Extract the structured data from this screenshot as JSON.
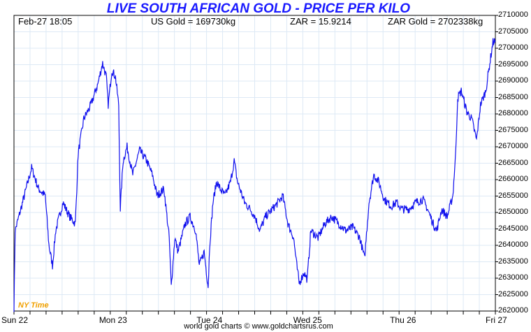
{
  "chart_data": {
    "type": "line",
    "title": "LIVE SOUTH AFRICAN GOLD - PRICE PER KILO",
    "header": {
      "datetime": "Feb-27  18:05",
      "us_gold": "US Gold = 169730kg",
      "zar": "ZAR = 15.9214",
      "zar_gold": "ZAR Gold = 2702338kg"
    },
    "x_unit": "hours since Sun 22 open",
    "xlim": [
      0,
      120
    ],
    "x_ticks": [
      {
        "label": "Sun 22",
        "h": 0
      },
      {
        "label": "Mon 23",
        "h": 24.7
      },
      {
        "label": "Tue 24",
        "h": 49
      },
      {
        "label": "Wed 25",
        "h": 73.1
      },
      {
        "label": "Thu 26",
        "h": 97.2
      },
      {
        "label": "Fri 27",
        "h": 120
      }
    ],
    "ylim": [
      2620000,
      2710000
    ],
    "y_ticks": [
      "2710000",
      "2705000",
      "2700000",
      "2695000",
      "2690000",
      "2685000",
      "2680000",
      "2675000",
      "2670000",
      "2665000",
      "2660000",
      "2655000",
      "2650000",
      "2645000",
      "2640000",
      "2635000",
      "2630000",
      "2625000",
      "2620000"
    ],
    "grid": true,
    "time_zone_label": "NY Time",
    "credit": "world gold charts © www.goldchartsrus.com",
    "line_color": "#1010ee",
    "series": [
      {
        "name": "ZAR Gold per kilo",
        "x": [
          0,
          0.3,
          1.7,
          4.4,
          6.1,
          7.8,
          8.7,
          9.6,
          10.4,
          12.2,
          13.9,
          15.3,
          16,
          17.4,
          19.2,
          20.9,
          22.1,
          23,
          23.5,
          24.4,
          25.3,
          26.1,
          26.5,
          27.2,
          28.2,
          29.6,
          31.3,
          33.1,
          34.5,
          35.7,
          37.4,
          38.7,
          39.2,
          40.1,
          40.9,
          42.7,
          43.9,
          45.3,
          46.2,
          47.4,
          48.4,
          48.8,
          49.6,
          50.5,
          51.4,
          52.6,
          54,
          54.9,
          55.7,
          57.5,
          58.9,
          60.1,
          61.3,
          62.7,
          64.4,
          65.8,
          67,
          68.3,
          69.7,
          70.5,
          71.1,
          72.3,
          73.1,
          74,
          75.8,
          77.5,
          79.2,
          81,
          82.7,
          84.5,
          86.2,
          87.4,
          88.5,
          89.7,
          90.9,
          92.3,
          94,
          95.4,
          96.7,
          98.4,
          100.1,
          101.9,
          103.1,
          104.5,
          105.4,
          106.6,
          108,
          109.4,
          110.1,
          110.6,
          111.5,
          112.9,
          114.1,
          115.3,
          116.3,
          117.6,
          118.5,
          119.4,
          120
        ],
        "values": [
          2621000,
          2644500,
          2651000,
          2663600,
          2657200,
          2655100,
          2640200,
          2633800,
          2644500,
          2653000,
          2648700,
          2646600,
          2667900,
          2678500,
          2682800,
          2689100,
          2695500,
          2691300,
          2682800,
          2693400,
          2691300,
          2682800,
          2651000,
          2665700,
          2670000,
          2661500,
          2668900,
          2665700,
          2661500,
          2655100,
          2657200,
          2642300,
          2627400,
          2642300,
          2638100,
          2646600,
          2648700,
          2644500,
          2633800,
          2638100,
          2627400,
          2640200,
          2653000,
          2659400,
          2657200,
          2655100,
          2659400,
          2665700,
          2659400,
          2653000,
          2651000,
          2648700,
          2644500,
          2648700,
          2651000,
          2653000,
          2655100,
          2646600,
          2642300,
          2633800,
          2628500,
          2631700,
          2629600,
          2644500,
          2642300,
          2646600,
          2648700,
          2646600,
          2644500,
          2645500,
          2642300,
          2636000,
          2653000,
          2661500,
          2659400,
          2654000,
          2651900,
          2653000,
          2651000,
          2651000,
          2653000,
          2654000,
          2651000,
          2646600,
          2644500,
          2651000,
          2648700,
          2655100,
          2667900,
          2684900,
          2687000,
          2680600,
          2678500,
          2672100,
          2682800,
          2687000,
          2694500,
          2701900,
          2702300
        ]
      }
    ]
  }
}
